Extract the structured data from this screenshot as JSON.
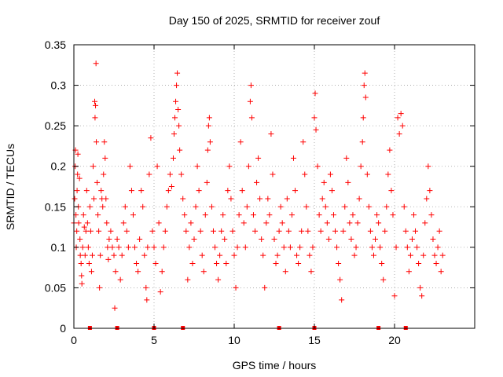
{
  "colors": {
    "series": "#ff0000",
    "grid": "#a0a0a0",
    "axis": "#000000",
    "background": "#ffffff"
  },
  "chart_data": {
    "type": "scatter",
    "title": "Day 150 of 2025, SRMTID for receiver zouf",
    "xlabel": "GPS time / hours",
    "ylabel": "SRMTID / TECUs",
    "xlim": [
      0,
      25
    ],
    "ylim": [
      0,
      0.35
    ],
    "xticks": [
      0,
      5,
      10,
      15,
      20
    ],
    "yticks": [
      0,
      0.05,
      0.1,
      0.15,
      0.2,
      0.25,
      0.3,
      0.35
    ],
    "xtick_labels": [
      "0",
      "5",
      "10",
      "15",
      "20"
    ],
    "ytick_labels": [
      "0",
      "0.05",
      "0.1",
      "0.15",
      "0.2",
      "0.25",
      "0.3",
      "0.35"
    ],
    "grid": true,
    "marker": "+",
    "series": [
      {
        "name": "SRMTID",
        "points": [
          [
            0.0,
            0.13
          ],
          [
            0.05,
            0.16
          ],
          [
            0.08,
            0.2
          ],
          [
            0.1,
            0.22
          ],
          [
            0.13,
            0.14
          ],
          [
            0.15,
            0.1
          ],
          [
            0.18,
            0.12
          ],
          [
            0.2,
            0.17
          ],
          [
            0.23,
            0.19
          ],
          [
            0.25,
            0.215
          ],
          [
            0.28,
            0.15
          ],
          [
            0.3,
            0.13
          ],
          [
            0.35,
            0.185
          ],
          [
            0.38,
            0.11
          ],
          [
            0.4,
            0.09
          ],
          [
            0.45,
            0.08
          ],
          [
            0.48,
            0.065
          ],
          [
            0.5,
            0.055
          ],
          [
            0.55,
            0.1
          ],
          [
            0.6,
            0.14
          ],
          [
            0.65,
            0.125
          ],
          [
            0.7,
            0.09
          ],
          [
            0.75,
            0.12
          ],
          [
            0.8,
            0.17
          ],
          [
            0.85,
            0.13
          ],
          [
            0.9,
            0.1
          ],
          [
            0.95,
            0.08
          ],
          [
            1.0,
            0.15
          ],
          [
            1.05,
            0.12
          ],
          [
            1.1,
            0.07
          ],
          [
            1.15,
            0.09
          ],
          [
            1.2,
            0.2
          ],
          [
            1.25,
            0.16
          ],
          [
            1.3,
            0.28
          ],
          [
            1.32,
            0.26
          ],
          [
            1.35,
            0.275
          ],
          [
            1.38,
            0.327
          ],
          [
            1.4,
            0.23
          ],
          [
            1.45,
            0.18
          ],
          [
            1.5,
            0.14
          ],
          [
            1.55,
            0.12
          ],
          [
            1.6,
            0.05
          ],
          [
            1.65,
            0.09
          ],
          [
            1.7,
            0.17
          ],
          [
            1.75,
            0.16
          ],
          [
            1.8,
            0.15
          ],
          [
            1.85,
            0.19
          ],
          [
            1.9,
            0.23
          ],
          [
            1.95,
            0.21
          ],
          [
            2.0,
            0.16
          ],
          [
            2.05,
            0.13
          ],
          [
            2.1,
            0.1
          ],
          [
            2.15,
            0.085
          ],
          [
            2.2,
            0.11
          ],
          [
            2.3,
            0.12
          ],
          [
            2.4,
            0.1
          ],
          [
            2.5,
            0.09
          ],
          [
            2.55,
            0.025
          ],
          [
            2.6,
            0.07
          ],
          [
            2.7,
            0.11
          ],
          [
            2.8,
            0.1
          ],
          [
            2.9,
            0.06
          ],
          [
            3.0,
            0.09
          ],
          [
            3.1,
            0.13
          ],
          [
            3.2,
            0.15
          ],
          [
            3.3,
            0.12
          ],
          [
            3.4,
            0.1
          ],
          [
            3.5,
            0.2
          ],
          [
            3.6,
            0.17
          ],
          [
            3.7,
            0.14
          ],
          [
            3.8,
            0.1
          ],
          [
            3.9,
            0.08
          ],
          [
            4.0,
            0.07
          ],
          [
            4.1,
            0.11
          ],
          [
            4.2,
            0.17
          ],
          [
            4.3,
            0.15
          ],
          [
            4.4,
            0.09
          ],
          [
            4.5,
            0.05
          ],
          [
            4.55,
            0.035
          ],
          [
            4.6,
            0.1
          ],
          [
            4.7,
            0.19
          ],
          [
            4.8,
            0.235
          ],
          [
            4.9,
            0.12
          ],
          [
            5.0,
            0.1
          ],
          [
            5.1,
            0.08
          ],
          [
            5.2,
            0.2
          ],
          [
            5.3,
            0.13
          ],
          [
            5.4,
            0.045
          ],
          [
            5.5,
            0.07
          ],
          [
            5.6,
            0.1
          ],
          [
            5.7,
            0.12
          ],
          [
            5.8,
            0.15
          ],
          [
            5.9,
            0.17
          ],
          [
            6.0,
            0.19
          ],
          [
            6.1,
            0.175
          ],
          [
            6.2,
            0.21
          ],
          [
            6.25,
            0.24
          ],
          [
            6.3,
            0.26
          ],
          [
            6.35,
            0.28
          ],
          [
            6.4,
            0.3
          ],
          [
            6.45,
            0.315
          ],
          [
            6.5,
            0.27
          ],
          [
            6.55,
            0.25
          ],
          [
            6.6,
            0.22
          ],
          [
            6.7,
            0.19
          ],
          [
            6.8,
            0.16
          ],
          [
            6.9,
            0.14
          ],
          [
            7.0,
            0.12
          ],
          [
            7.1,
            0.06
          ],
          [
            7.2,
            0.1
          ],
          [
            7.3,
            0.13
          ],
          [
            7.4,
            0.08
          ],
          [
            7.5,
            0.11
          ],
          [
            7.6,
            0.15
          ],
          [
            7.7,
            0.2
          ],
          [
            7.8,
            0.17
          ],
          [
            7.9,
            0.12
          ],
          [
            8.0,
            0.09
          ],
          [
            8.1,
            0.07
          ],
          [
            8.2,
            0.14
          ],
          [
            8.3,
            0.18
          ],
          [
            8.35,
            0.22
          ],
          [
            8.4,
            0.25
          ],
          [
            8.45,
            0.26
          ],
          [
            8.5,
            0.23
          ],
          [
            8.6,
            0.15
          ],
          [
            8.7,
            0.12
          ],
          [
            8.8,
            0.1
          ],
          [
            8.9,
            0.08
          ],
          [
            9.0,
            0.06
          ],
          [
            9.1,
            0.09
          ],
          [
            9.2,
            0.12
          ],
          [
            9.3,
            0.14
          ],
          [
            9.4,
            0.11
          ],
          [
            9.5,
            0.08
          ],
          [
            9.6,
            0.17
          ],
          [
            9.7,
            0.2
          ],
          [
            9.8,
            0.16
          ],
          [
            9.9,
            0.12
          ],
          [
            10.0,
            0.09
          ],
          [
            10.1,
            0.05
          ],
          [
            10.2,
            0.1
          ],
          [
            10.3,
            0.14
          ],
          [
            10.4,
            0.23
          ],
          [
            10.5,
            0.17
          ],
          [
            10.6,
            0.13
          ],
          [
            10.7,
            0.1
          ],
          [
            10.8,
            0.15
          ],
          [
            10.9,
            0.2
          ],
          [
            11.0,
            0.28
          ],
          [
            11.05,
            0.3
          ],
          [
            11.1,
            0.26
          ],
          [
            11.2,
            0.14
          ],
          [
            11.3,
            0.12
          ],
          [
            11.4,
            0.18
          ],
          [
            11.5,
            0.21
          ],
          [
            11.6,
            0.16
          ],
          [
            11.7,
            0.11
          ],
          [
            11.8,
            0.09
          ],
          [
            11.9,
            0.05
          ],
          [
            12.0,
            0.13
          ],
          [
            12.1,
            0.16
          ],
          [
            12.2,
            0.14
          ],
          [
            12.3,
            0.24
          ],
          [
            12.4,
            0.19
          ],
          [
            12.5,
            0.11
          ],
          [
            12.6,
            0.08
          ],
          [
            12.7,
            0.09
          ],
          [
            12.8,
            0.12
          ],
          [
            12.9,
            0.15
          ],
          [
            13.0,
            0.13
          ],
          [
            13.1,
            0.1
          ],
          [
            13.2,
            0.07
          ],
          [
            13.3,
            0.16
          ],
          [
            13.4,
            0.12
          ],
          [
            13.5,
            0.1
          ],
          [
            13.6,
            0.14
          ],
          [
            13.7,
            0.21
          ],
          [
            13.8,
            0.17
          ],
          [
            13.9,
            0.09
          ],
          [
            14.0,
            0.08
          ],
          [
            14.1,
            0.1
          ],
          [
            14.2,
            0.12
          ],
          [
            14.3,
            0.23
          ],
          [
            14.4,
            0.19
          ],
          [
            14.5,
            0.15
          ],
          [
            14.6,
            0.12
          ],
          [
            14.7,
            0.09
          ],
          [
            14.8,
            0.07
          ],
          [
            14.9,
            0.1
          ],
          [
            15.0,
            0.26
          ],
          [
            15.05,
            0.29
          ],
          [
            15.1,
            0.245
          ],
          [
            15.2,
            0.2
          ],
          [
            15.3,
            0.14
          ],
          [
            15.4,
            0.12
          ],
          [
            15.5,
            0.16
          ],
          [
            15.6,
            0.18
          ],
          [
            15.7,
            0.15
          ],
          [
            15.8,
            0.13
          ],
          [
            15.9,
            0.11
          ],
          [
            16.0,
            0.19
          ],
          [
            16.1,
            0.17
          ],
          [
            16.2,
            0.14
          ],
          [
            16.3,
            0.12
          ],
          [
            16.4,
            0.1
          ],
          [
            16.5,
            0.08
          ],
          [
            16.6,
            0.06
          ],
          [
            16.7,
            0.035
          ],
          [
            16.8,
            0.12
          ],
          [
            16.9,
            0.15
          ],
          [
            17.0,
            0.21
          ],
          [
            17.1,
            0.18
          ],
          [
            17.2,
            0.13
          ],
          [
            17.3,
            0.11
          ],
          [
            17.4,
            0.14
          ],
          [
            17.5,
            0.09
          ],
          [
            17.6,
            0.1
          ],
          [
            17.7,
            0.13
          ],
          [
            17.8,
            0.16
          ],
          [
            17.9,
            0.2
          ],
          [
            18.0,
            0.23
          ],
          [
            18.05,
            0.26
          ],
          [
            18.1,
            0.3
          ],
          [
            18.15,
            0.315
          ],
          [
            18.2,
            0.285
          ],
          [
            18.3,
            0.19
          ],
          [
            18.4,
            0.15
          ],
          [
            18.5,
            0.12
          ],
          [
            18.6,
            0.1
          ],
          [
            18.7,
            0.09
          ],
          [
            18.8,
            0.11
          ],
          [
            18.9,
            0.14
          ],
          [
            19.0,
            0.13
          ],
          [
            19.1,
            0.1
          ],
          [
            19.2,
            0.08
          ],
          [
            19.3,
            0.06
          ],
          [
            19.4,
            0.12
          ],
          [
            19.5,
            0.15
          ],
          [
            19.6,
            0.19
          ],
          [
            19.7,
            0.22
          ],
          [
            19.8,
            0.17
          ],
          [
            19.9,
            0.14
          ],
          [
            20.0,
            0.04
          ],
          [
            20.1,
            0.1
          ],
          [
            20.2,
            0.26
          ],
          [
            20.3,
            0.24
          ],
          [
            20.4,
            0.265
          ],
          [
            20.5,
            0.25
          ],
          [
            20.6,
            0.15
          ],
          [
            20.7,
            0.12
          ],
          [
            20.8,
            0.1
          ],
          [
            20.9,
            0.07
          ],
          [
            21.0,
            0.09
          ],
          [
            21.1,
            0.11
          ],
          [
            21.2,
            0.14
          ],
          [
            21.3,
            0.12
          ],
          [
            21.4,
            0.1
          ],
          [
            21.5,
            0.08
          ],
          [
            21.6,
            0.05
          ],
          [
            21.7,
            0.04
          ],
          [
            21.8,
            0.09
          ],
          [
            21.9,
            0.13
          ],
          [
            22.0,
            0.16
          ],
          [
            22.1,
            0.2
          ],
          [
            22.2,
            0.17
          ],
          [
            22.3,
            0.14
          ],
          [
            22.4,
            0.11
          ],
          [
            22.5,
            0.09
          ],
          [
            22.6,
            0.08
          ],
          [
            22.7,
            0.1
          ],
          [
            22.8,
            0.12
          ],
          [
            22.9,
            0.07
          ],
          [
            23.0,
            0.09
          ]
        ]
      }
    ],
    "baseline_markers": [
      1.0,
      2.7,
      5.0,
      6.8,
      12.8,
      15.0,
      19.0,
      20.7
    ]
  }
}
